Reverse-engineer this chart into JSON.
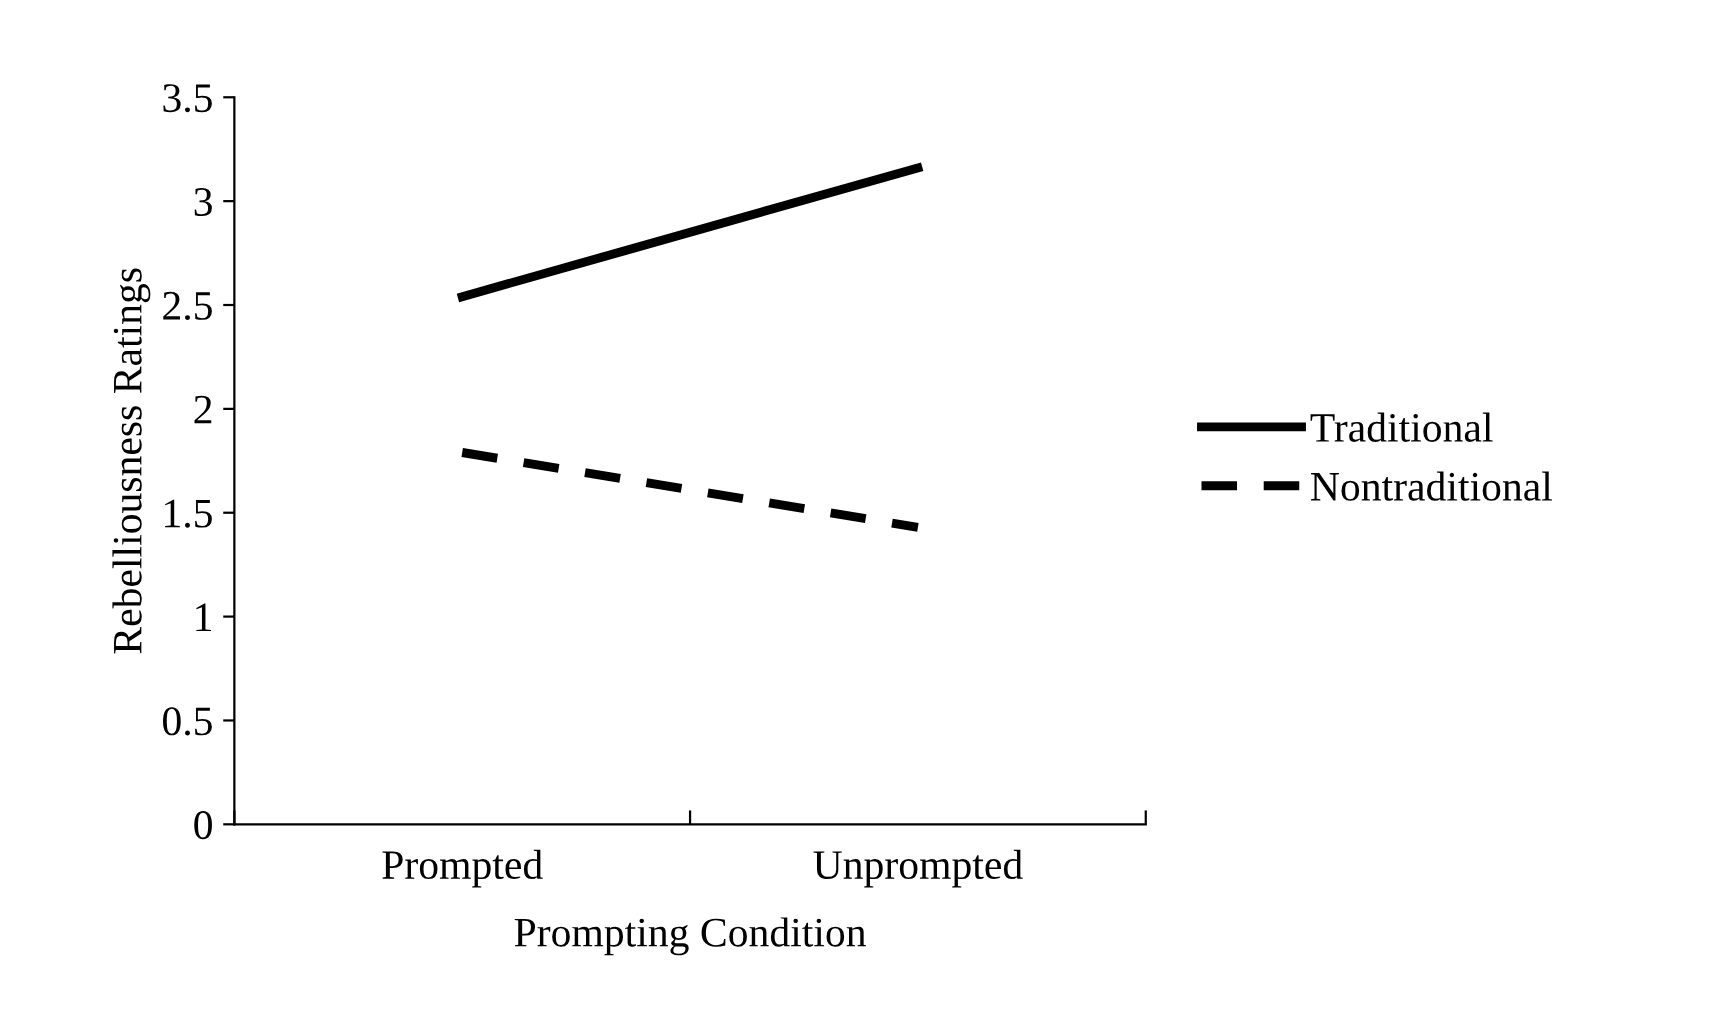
{
  "chart_data": {
    "type": "line",
    "xlabel": "Prompting Condition",
    "ylabel": "Rebelliousness Ratings",
    "categories": [
      "Prompted",
      "Unprompted"
    ],
    "series": [
      {
        "name": "Traditional",
        "color": "#000000",
        "values": [
          2.54,
          3.16
        ],
        "line_style": "solid"
      },
      {
        "name": "Nontraditional",
        "color": "#000000",
        "values": [
          1.79,
          1.43
        ],
        "line_style": "dashed"
      }
    ],
    "ylim": [
      0,
      3.5
    ],
    "yticks": [
      0,
      0.5,
      1,
      1.5,
      2,
      2.5,
      3,
      3.5
    ],
    "grid": false,
    "legend": "right",
    "marker": "none"
  }
}
